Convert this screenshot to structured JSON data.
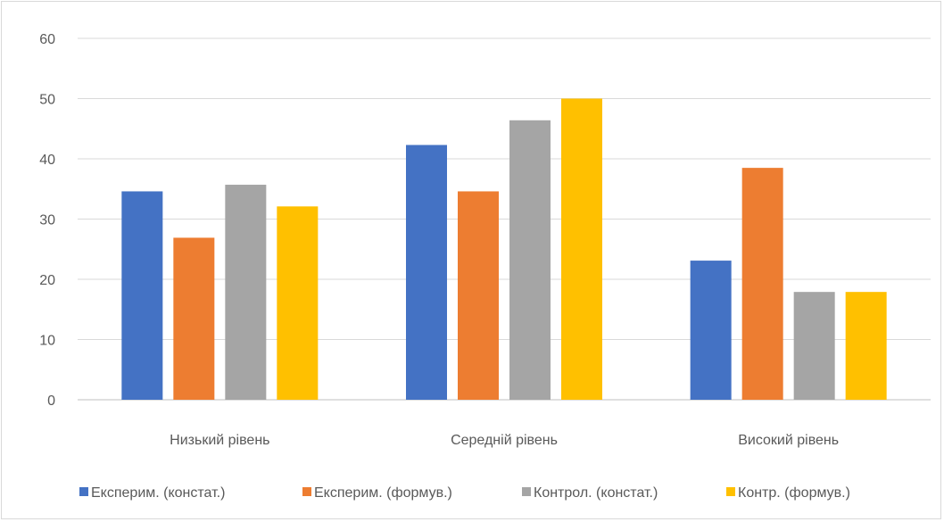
{
  "chart_data": {
    "type": "bar",
    "title": "",
    "xlabel": "",
    "ylabel": "",
    "ylim": [
      0,
      60
    ],
    "yticks": [
      0,
      10,
      20,
      30,
      40,
      50,
      60
    ],
    "grid": true,
    "legend_position": "bottom",
    "categories": [
      "Низький рівень",
      "Середній рівень",
      "Високий рівень"
    ],
    "series": [
      {
        "name": "Експерим. (констат.)",
        "color": "#4472c4",
        "values": [
          34.6,
          42.3,
          23.1
        ]
      },
      {
        "name": "Експерим. (формув.)",
        "color": "#ed7d31",
        "values": [
          26.9,
          34.6,
          38.5
        ]
      },
      {
        "name": "Контрол. (констат.)",
        "color": "#a5a5a5",
        "values": [
          35.7,
          46.4,
          17.9
        ]
      },
      {
        "name": "Контр. (формув.)",
        "color": "#ffc000",
        "values": [
          32.1,
          50.0,
          17.9
        ]
      }
    ]
  }
}
